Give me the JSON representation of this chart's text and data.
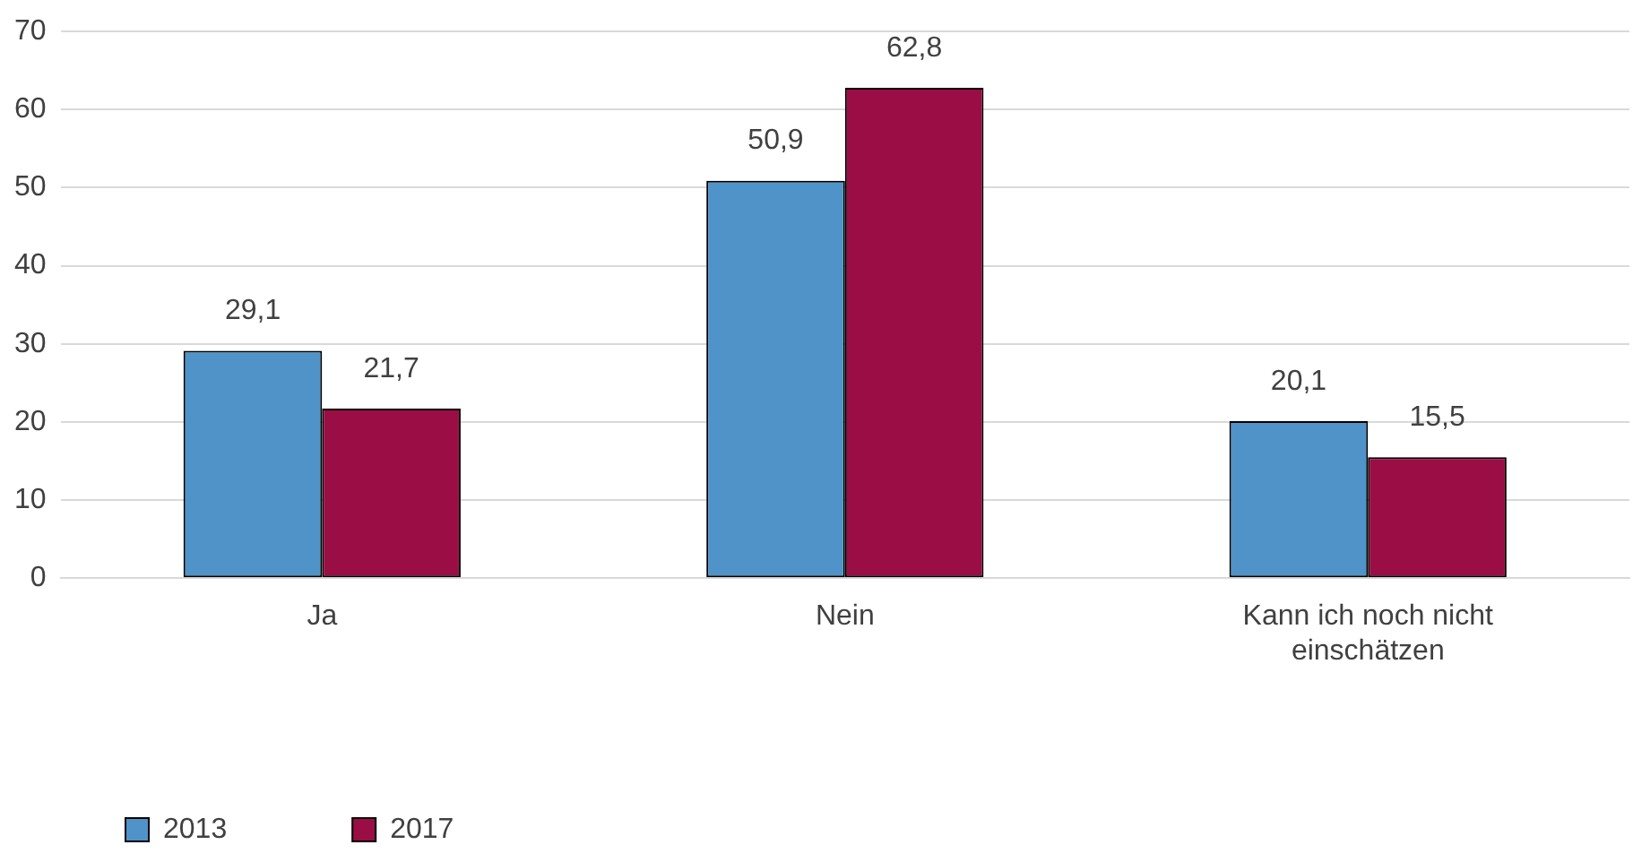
{
  "chart_data": {
    "type": "bar",
    "categories": [
      "Ja",
      "Nein",
      "Kann ich noch nicht einschätzen"
    ],
    "series": [
      {
        "name": "2013",
        "color": "#4f93c9",
        "values": [
          29.1,
          50.9,
          20.1
        ],
        "value_labels": [
          "29,1",
          "50,9",
          "20,1"
        ]
      },
      {
        "name": "2017",
        "color": "#9b0d45",
        "values": [
          21.7,
          62.8,
          15.5
        ],
        "value_labels": [
          "21,7",
          "62,8",
          "15,5"
        ]
      }
    ],
    "ylim": [
      0,
      70
    ],
    "yticks": [
      0,
      10,
      20,
      30,
      40,
      50,
      60,
      70
    ],
    "grid": "y",
    "legend": "bottom left"
  }
}
